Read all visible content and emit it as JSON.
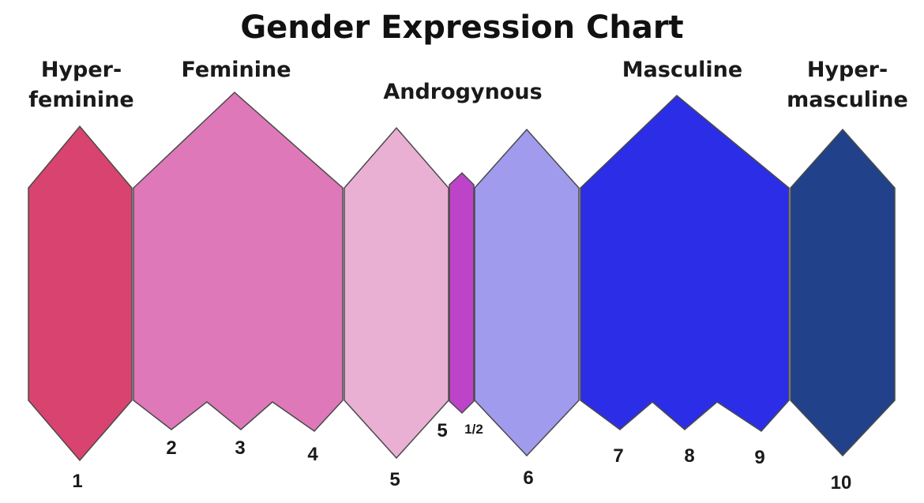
{
  "title": "Gender Expression Chart",
  "categories": [
    {
      "id": "hyper-feminine",
      "lines": [
        "Hyper-",
        "feminine"
      ]
    },
    {
      "id": "feminine",
      "lines": [
        "Feminine"
      ]
    },
    {
      "id": "androgynous",
      "lines": [
        "Androgynous"
      ]
    },
    {
      "id": "masculine",
      "lines": [
        "Masculine"
      ]
    },
    {
      "id": "hyper-masculine",
      "lines": [
        "Hyper-",
        "masculine"
      ]
    }
  ],
  "segments": [
    {
      "id": "hyper-feminine",
      "color": "#d9436f",
      "labels": [
        "1"
      ]
    },
    {
      "id": "feminine",
      "color": "#df78b9",
      "labels": [
        "2",
        "3",
        "4"
      ]
    },
    {
      "id": "androgynous-fem",
      "color": "#e9b0d4",
      "labels": [
        "5"
      ]
    },
    {
      "id": "androgynous-center",
      "color": "#bd44c8",
      "labels": [
        "5",
        "1/2"
      ]
    },
    {
      "id": "androgynous-masc",
      "color": "#a19bee",
      "labels": [
        "6"
      ]
    },
    {
      "id": "masculine",
      "color": "#2b2ee6",
      "labels": [
        "7",
        "8",
        "9"
      ]
    },
    {
      "id": "hyper-masculine",
      "color": "#21418a",
      "labels": [
        "10"
      ]
    }
  ]
}
